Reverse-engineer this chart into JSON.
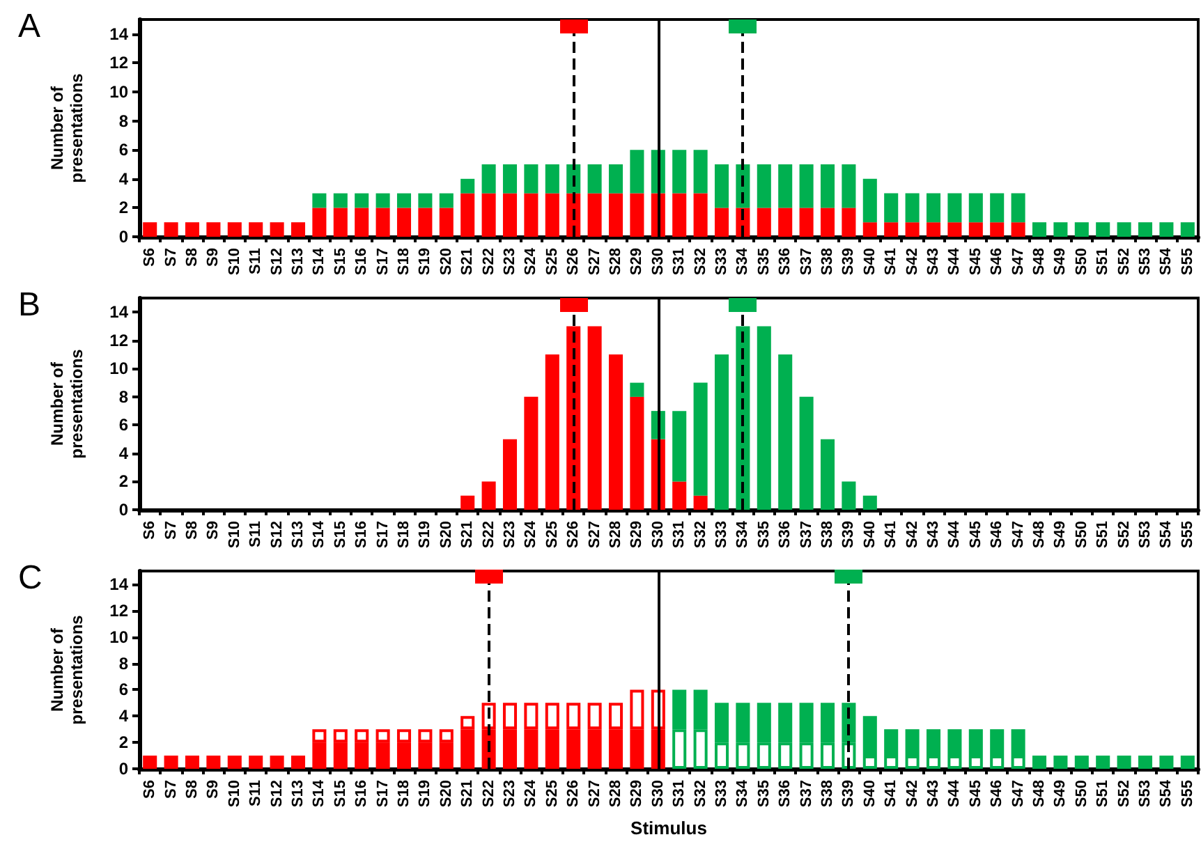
{
  "chart_data": [
    {
      "type": "bar",
      "title": "A",
      "ylabel": "Number of presentations",
      "stacked": true,
      "grid": false,
      "categories": [
        "S6",
        "S7",
        "S8",
        "S9",
        "S10",
        "S11",
        "S12",
        "S13",
        "S14",
        "S15",
        "S16",
        "S17",
        "S18",
        "S19",
        "S20",
        "S21",
        "S22",
        "S23",
        "S24",
        "S25",
        "S26",
        "S27",
        "S28",
        "S29",
        "S30",
        "S31",
        "S32",
        "S33",
        "S34",
        "S35",
        "S36",
        "S37",
        "S38",
        "S39",
        "S40",
        "S41",
        "S42",
        "S43",
        "S44",
        "S45",
        "S46",
        "S47",
        "S48",
        "S49",
        "S50",
        "S51",
        "S52",
        "S53",
        "S54",
        "S55"
      ],
      "ylim": [
        0,
        15
      ],
      "yticks": [
        0,
        2,
        4,
        6,
        8,
        10,
        12,
        14
      ],
      "series": [
        {
          "color": "#ff0000",
          "values": [
            1,
            1,
            1,
            1,
            1,
            1,
            1,
            1,
            2,
            2,
            2,
            2,
            2,
            2,
            2,
            3,
            3,
            3,
            3,
            3,
            3,
            3,
            3,
            3,
            3,
            3,
            3,
            2,
            2,
            2,
            2,
            2,
            2,
            2,
            1,
            1,
            1,
            1,
            1,
            1,
            1,
            1,
            null,
            null,
            null,
            null,
            null,
            null,
            null,
            null
          ]
        },
        {
          "color": "#00b050",
          "values": [
            null,
            null,
            null,
            null,
            null,
            null,
            null,
            null,
            1,
            1,
            1,
            1,
            1,
            1,
            1,
            1,
            2,
            2,
            2,
            2,
            2,
            2,
            2,
            3,
            3,
            3,
            3,
            3,
            3,
            3,
            3,
            3,
            3,
            3,
            3,
            2,
            2,
            2,
            2,
            2,
            2,
            2,
            1,
            1,
            1,
            1,
            1,
            1,
            1,
            1
          ]
        }
      ],
      "ref_lines": [
        {
          "axis": "x",
          "value": "S26",
          "line_style": "dashed"
        },
        {
          "axis": "x",
          "value": "S30",
          "line_style": "solid"
        },
        {
          "axis": "x",
          "value": "S34",
          "line_style": "dashed"
        }
      ]
    },
    {
      "type": "bar",
      "title": "B",
      "ylabel": "Number of presentations",
      "stacked": true,
      "grid": false,
      "categories": [
        "S6",
        "S7",
        "S8",
        "S9",
        "S10",
        "S11",
        "S12",
        "S13",
        "S14",
        "S15",
        "S16",
        "S17",
        "S18",
        "S19",
        "S20",
        "S21",
        "S22",
        "S23",
        "S24",
        "S25",
        "S26",
        "S27",
        "S28",
        "S29",
        "S30",
        "S31",
        "S32",
        "S33",
        "S34",
        "S35",
        "S36",
        "S37",
        "S38",
        "S39",
        "S40",
        "S41",
        "S42",
        "S43",
        "S44",
        "S45",
        "S46",
        "S47",
        "S48",
        "S49",
        "S50",
        "S51",
        "S52",
        "S53",
        "S54",
        "S55"
      ],
      "ylim": [
        0,
        15
      ],
      "yticks": [
        0,
        2,
        4,
        6,
        8,
        10,
        12,
        14
      ],
      "series": [
        {
          "color": "#ff0000",
          "values": [
            null,
            null,
            null,
            null,
            null,
            null,
            null,
            null,
            null,
            null,
            null,
            null,
            null,
            null,
            null,
            1,
            2,
            5,
            8,
            11,
            13,
            13,
            11,
            8,
            5,
            2,
            1,
            null,
            null,
            null,
            null,
            null,
            null,
            null,
            null,
            null,
            null,
            null,
            null,
            null,
            null,
            null,
            null,
            null,
            null,
            null,
            null,
            null,
            null,
            null
          ]
        },
        {
          "color": "#00b050",
          "values": [
            null,
            null,
            null,
            null,
            null,
            null,
            null,
            null,
            null,
            null,
            null,
            null,
            null,
            null,
            null,
            null,
            null,
            null,
            null,
            null,
            null,
            null,
            null,
            1,
            2,
            5,
            8,
            11,
            13,
            13,
            11,
            8,
            5,
            2,
            1,
            null,
            null,
            null,
            null,
            null,
            null,
            null,
            null,
            null,
            null,
            null,
            null,
            null,
            null,
            null
          ]
        }
      ],
      "ref_lines": [
        {
          "axis": "x",
          "value": "S26",
          "line_style": "dashed"
        },
        {
          "axis": "x",
          "value": "S30",
          "line_style": "solid"
        },
        {
          "axis": "x",
          "value": "S34",
          "line_style": "dashed"
        }
      ]
    },
    {
      "type": "bar",
      "title": "C",
      "ylabel": "Number of presentations",
      "xlabel": "Stimulus",
      "stacked": true,
      "grid": false,
      "categories": [
        "S6",
        "S7",
        "S8",
        "S9",
        "S10",
        "S11",
        "S12",
        "S13",
        "S14",
        "S15",
        "S16",
        "S17",
        "S18",
        "S19",
        "S20",
        "S21",
        "S22",
        "S23",
        "S24",
        "S25",
        "S26",
        "S27",
        "S28",
        "S29",
        "S30",
        "S31",
        "S32",
        "S33",
        "S34",
        "S35",
        "S36",
        "S37",
        "S38",
        "S39",
        "S40",
        "S41",
        "S42",
        "S43",
        "S44",
        "S45",
        "S46",
        "S47",
        "S48",
        "S49",
        "S50",
        "S51",
        "S52",
        "S53",
        "S54",
        "S55"
      ],
      "ylim": [
        0,
        15
      ],
      "yticks": [
        0,
        2,
        4,
        6,
        8,
        10,
        12,
        14
      ],
      "series": [
        {
          "color": "#ff0000",
          "values": [
            1,
            1,
            1,
            1,
            1,
            1,
            1,
            1,
            2,
            2,
            2,
            2,
            2,
            2,
            2,
            3,
            3,
            3,
            3,
            3,
            3,
            3,
            3,
            3,
            3,
            null,
            null,
            null,
            null,
            null,
            null,
            null,
            null,
            null,
            null,
            null,
            null,
            null,
            null,
            null,
            null,
            null,
            null,
            null,
            null,
            null,
            null,
            null,
            null,
            null
          ]
        },
        {
          "color": "#ffffff",
          "values": [
            null,
            null,
            null,
            null,
            null,
            null,
            null,
            null,
            1,
            1,
            1,
            1,
            1,
            1,
            1,
            1,
            2,
            2,
            2,
            2,
            2,
            2,
            2,
            3,
            3,
            null,
            null,
            null,
            null,
            null,
            null,
            null,
            null,
            null,
            null,
            null,
            null,
            null,
            null,
            null,
            null,
            null,
            null,
            null,
            null,
            null,
            null,
            null,
            null,
            null
          ]
        },
        {
          "color": "#ffffff",
          "values": [
            null,
            null,
            null,
            null,
            null,
            null,
            null,
            null,
            null,
            null,
            null,
            null,
            null,
            null,
            null,
            null,
            null,
            null,
            null,
            null,
            null,
            null,
            null,
            null,
            null,
            3,
            3,
            2,
            2,
            2,
            2,
            2,
            2,
            2,
            1,
            1,
            1,
            1,
            1,
            1,
            1,
            1,
            null,
            null,
            null,
            null,
            null,
            null,
            null,
            null
          ]
        },
        {
          "color": "#00b050",
          "values": [
            null,
            null,
            null,
            null,
            null,
            null,
            null,
            null,
            null,
            null,
            null,
            null,
            null,
            null,
            null,
            null,
            null,
            null,
            null,
            null,
            null,
            null,
            null,
            null,
            null,
            3,
            3,
            3,
            3,
            3,
            3,
            3,
            3,
            3,
            3,
            2,
            2,
            2,
            2,
            2,
            2,
            2,
            1,
            1,
            1,
            1,
            1,
            1,
            1,
            1
          ]
        }
      ],
      "ref_lines": [
        {
          "axis": "x",
          "value": "S22",
          "line_style": "dashed"
        },
        {
          "axis": "x",
          "value": "S30",
          "line_style": "solid"
        },
        {
          "axis": "x",
          "value": "S39",
          "line_style": "dashed"
        }
      ]
    }
  ]
}
